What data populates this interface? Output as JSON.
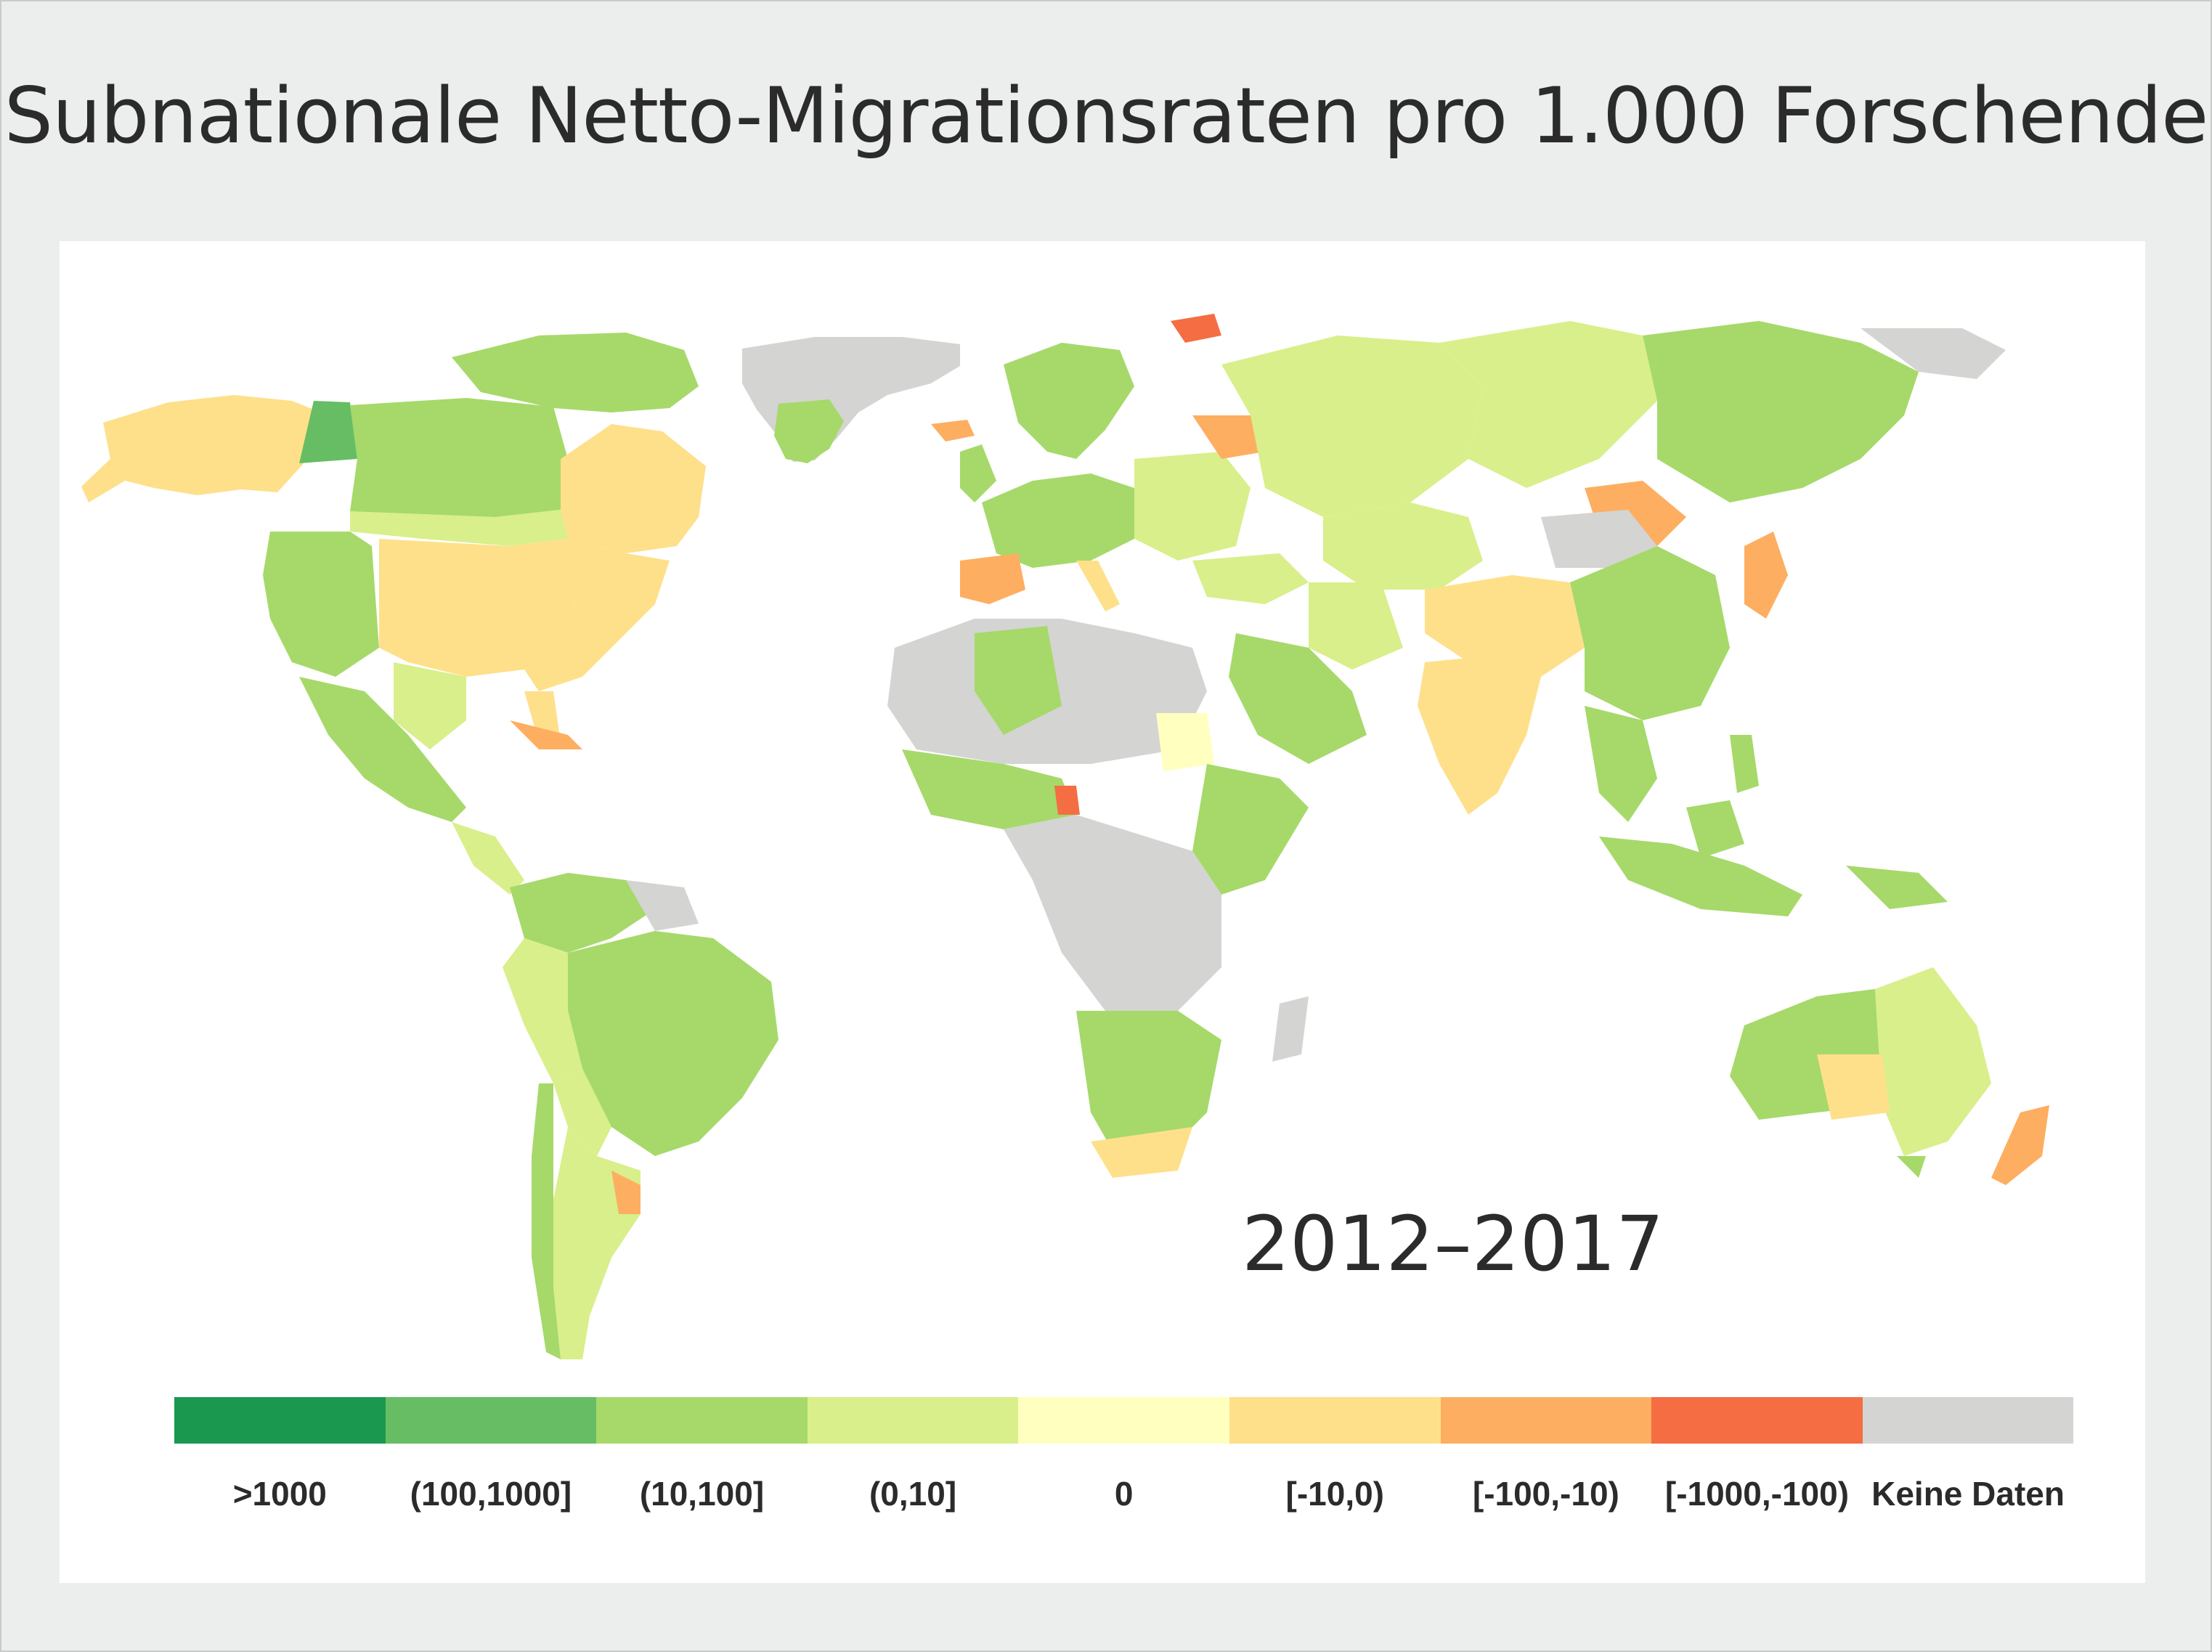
{
  "title": "Subnationale Netto-Migrationsraten pro 1.000 Forschende",
  "period": "2012–2017",
  "legend": {
    "items": [
      {
        "label": ">1000",
        "color": "#1a9850"
      },
      {
        "label": "(100,1000]",
        "color": "#66bd63"
      },
      {
        "label": "(10,100]",
        "color": "#a6d96a"
      },
      {
        "label": "(0,10]",
        "color": "#d9ef8b"
      },
      {
        "label": "0",
        "color": "#ffffbf"
      },
      {
        "label": "[-10,0)",
        "color": "#fee08b"
      },
      {
        "label": "[-100,-10)",
        "color": "#fdae61"
      },
      {
        "label": "[-1000,-100)",
        "color": "#f46d43"
      },
      {
        "label": "Keine Daten",
        "color": "#d4d4d2"
      }
    ]
  },
  "map_regions": [
    {
      "region": "Greenland",
      "class": "Keine Daten"
    },
    {
      "region": "Alaska",
      "class": "[-10,0)"
    },
    {
      "region": "Western Canada",
      "class": "(10,100]"
    },
    {
      "region": "Eastern Canada",
      "class": "[-10,0)"
    },
    {
      "region": "United States (central)",
      "class": "[-10,0)"
    },
    {
      "region": "Mexico",
      "class": "(10,100]"
    },
    {
      "region": "Brazil",
      "class": "(10,100]"
    },
    {
      "region": "Argentina",
      "class": "(0,10]"
    },
    {
      "region": "Europe",
      "class": "(10,100]"
    },
    {
      "region": "Northern Africa",
      "class": "Keine Daten"
    },
    {
      "region": "Southern Africa",
      "class": "(10,100]"
    },
    {
      "region": "Russia (west)",
      "class": "(0,10]"
    },
    {
      "region": "Russia (east)",
      "class": "(10,100]"
    },
    {
      "region": "China (west)",
      "class": "[-10,0)"
    },
    {
      "region": "China (east)",
      "class": "(10,100]"
    },
    {
      "region": "India",
      "class": "[-10,0)"
    },
    {
      "region": "Arabian Peninsula",
      "class": "(10,100]"
    },
    {
      "region": "Australia (west)",
      "class": "(10,100]"
    },
    {
      "region": "Australia (east)",
      "class": "(0,10]"
    },
    {
      "region": "New Zealand",
      "class": "[-100,-10)"
    }
  ]
}
